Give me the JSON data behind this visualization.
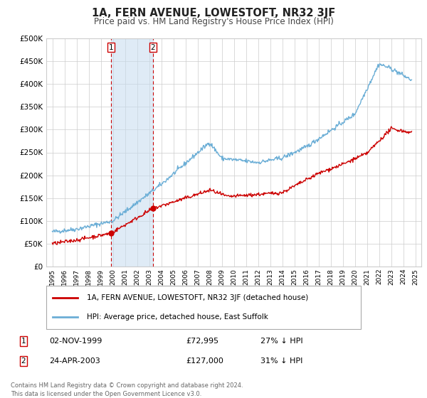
{
  "title": "1A, FERN AVENUE, LOWESTOFT, NR32 3JF",
  "subtitle": "Price paid vs. HM Land Registry's House Price Index (HPI)",
  "legend_line1": "1A, FERN AVENUE, LOWESTOFT, NR32 3JF (detached house)",
  "legend_line2": "HPI: Average price, detached house, East Suffolk",
  "sale1_label": "02-NOV-1999",
  "sale1_price": 72995,
  "sale1_price_str": "£72,995",
  "sale1_hpi_pct": "27% ↓ HPI",
  "sale2_label": "24-APR-2003",
  "sale2_price": 127000,
  "sale2_price_str": "£127,000",
  "sale2_hpi_pct": "31% ↓ HPI",
  "hpi_color": "#6baed6",
  "price_color": "#cc0000",
  "marker_color": "#cc0000",
  "shade_color": "#c6dbef",
  "vline_color": "#cc0000",
  "grid_color": "#cccccc",
  "footnote_line1": "Contains HM Land Registry data © Crown copyright and database right 2024.",
  "footnote_line2": "This data is licensed under the Open Government Licence v3.0.",
  "ylim_max": 500000,
  "xlim_start": 1994.5,
  "xlim_end": 2025.5,
  "sale1_year_dec": 1999.838,
  "sale2_year_dec": 2003.311
}
